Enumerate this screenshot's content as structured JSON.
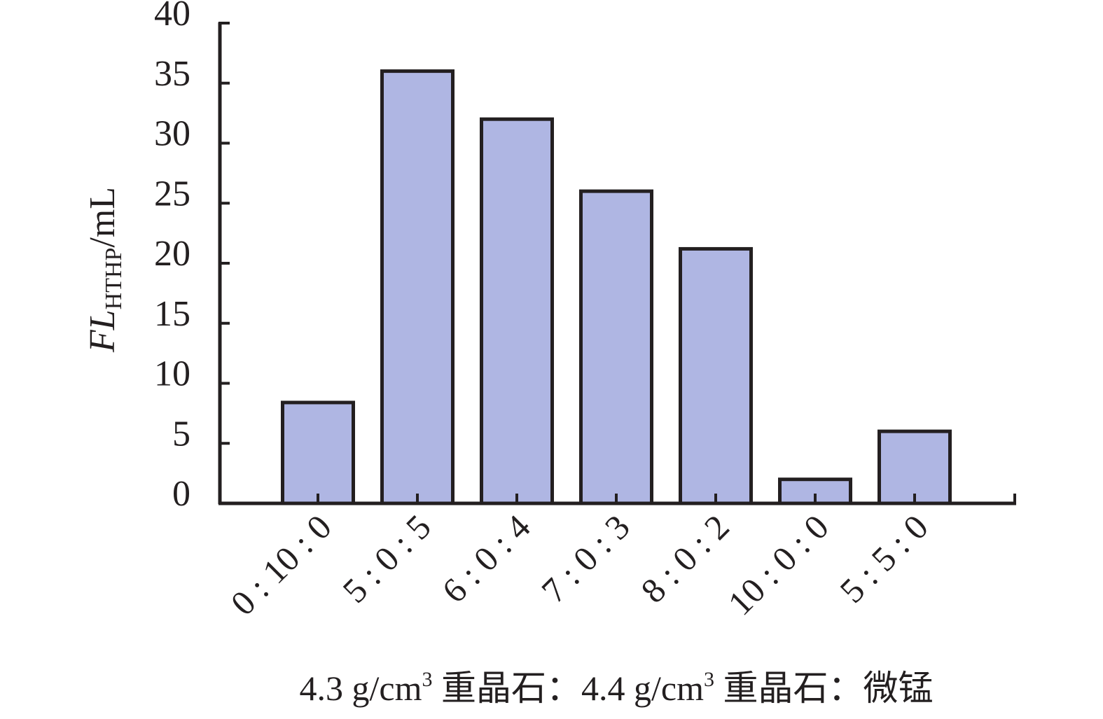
{
  "chart_data": {
    "type": "bar",
    "categories": [
      "0 : 10 : 0",
      "5 : 0 : 5",
      "6 : 0 : 4",
      "7 : 0 : 3",
      "8 : 0 : 2",
      "10 : 0 : 0",
      "5 : 5 : 0"
    ],
    "values": [
      8.4,
      36.0,
      32.0,
      26.0,
      21.2,
      2.0,
      6.0
    ],
    "ylim": [
      0,
      40
    ],
    "yticks": [
      0,
      5,
      10,
      15,
      20,
      25,
      30,
      35,
      40
    ],
    "ylabel": {
      "main": "FL",
      "sub": "HTHP",
      "unit": "/mL"
    },
    "xlabel": {
      "part1": "4.3 g/cm",
      "sup1": "3",
      "part2": " 重晶石：4.4 g/cm",
      "sup2": "3",
      "part3": " 重晶石：微锰"
    },
    "grid": false,
    "bar_color": "#afb6e3",
    "edge_color": "#231f20"
  }
}
